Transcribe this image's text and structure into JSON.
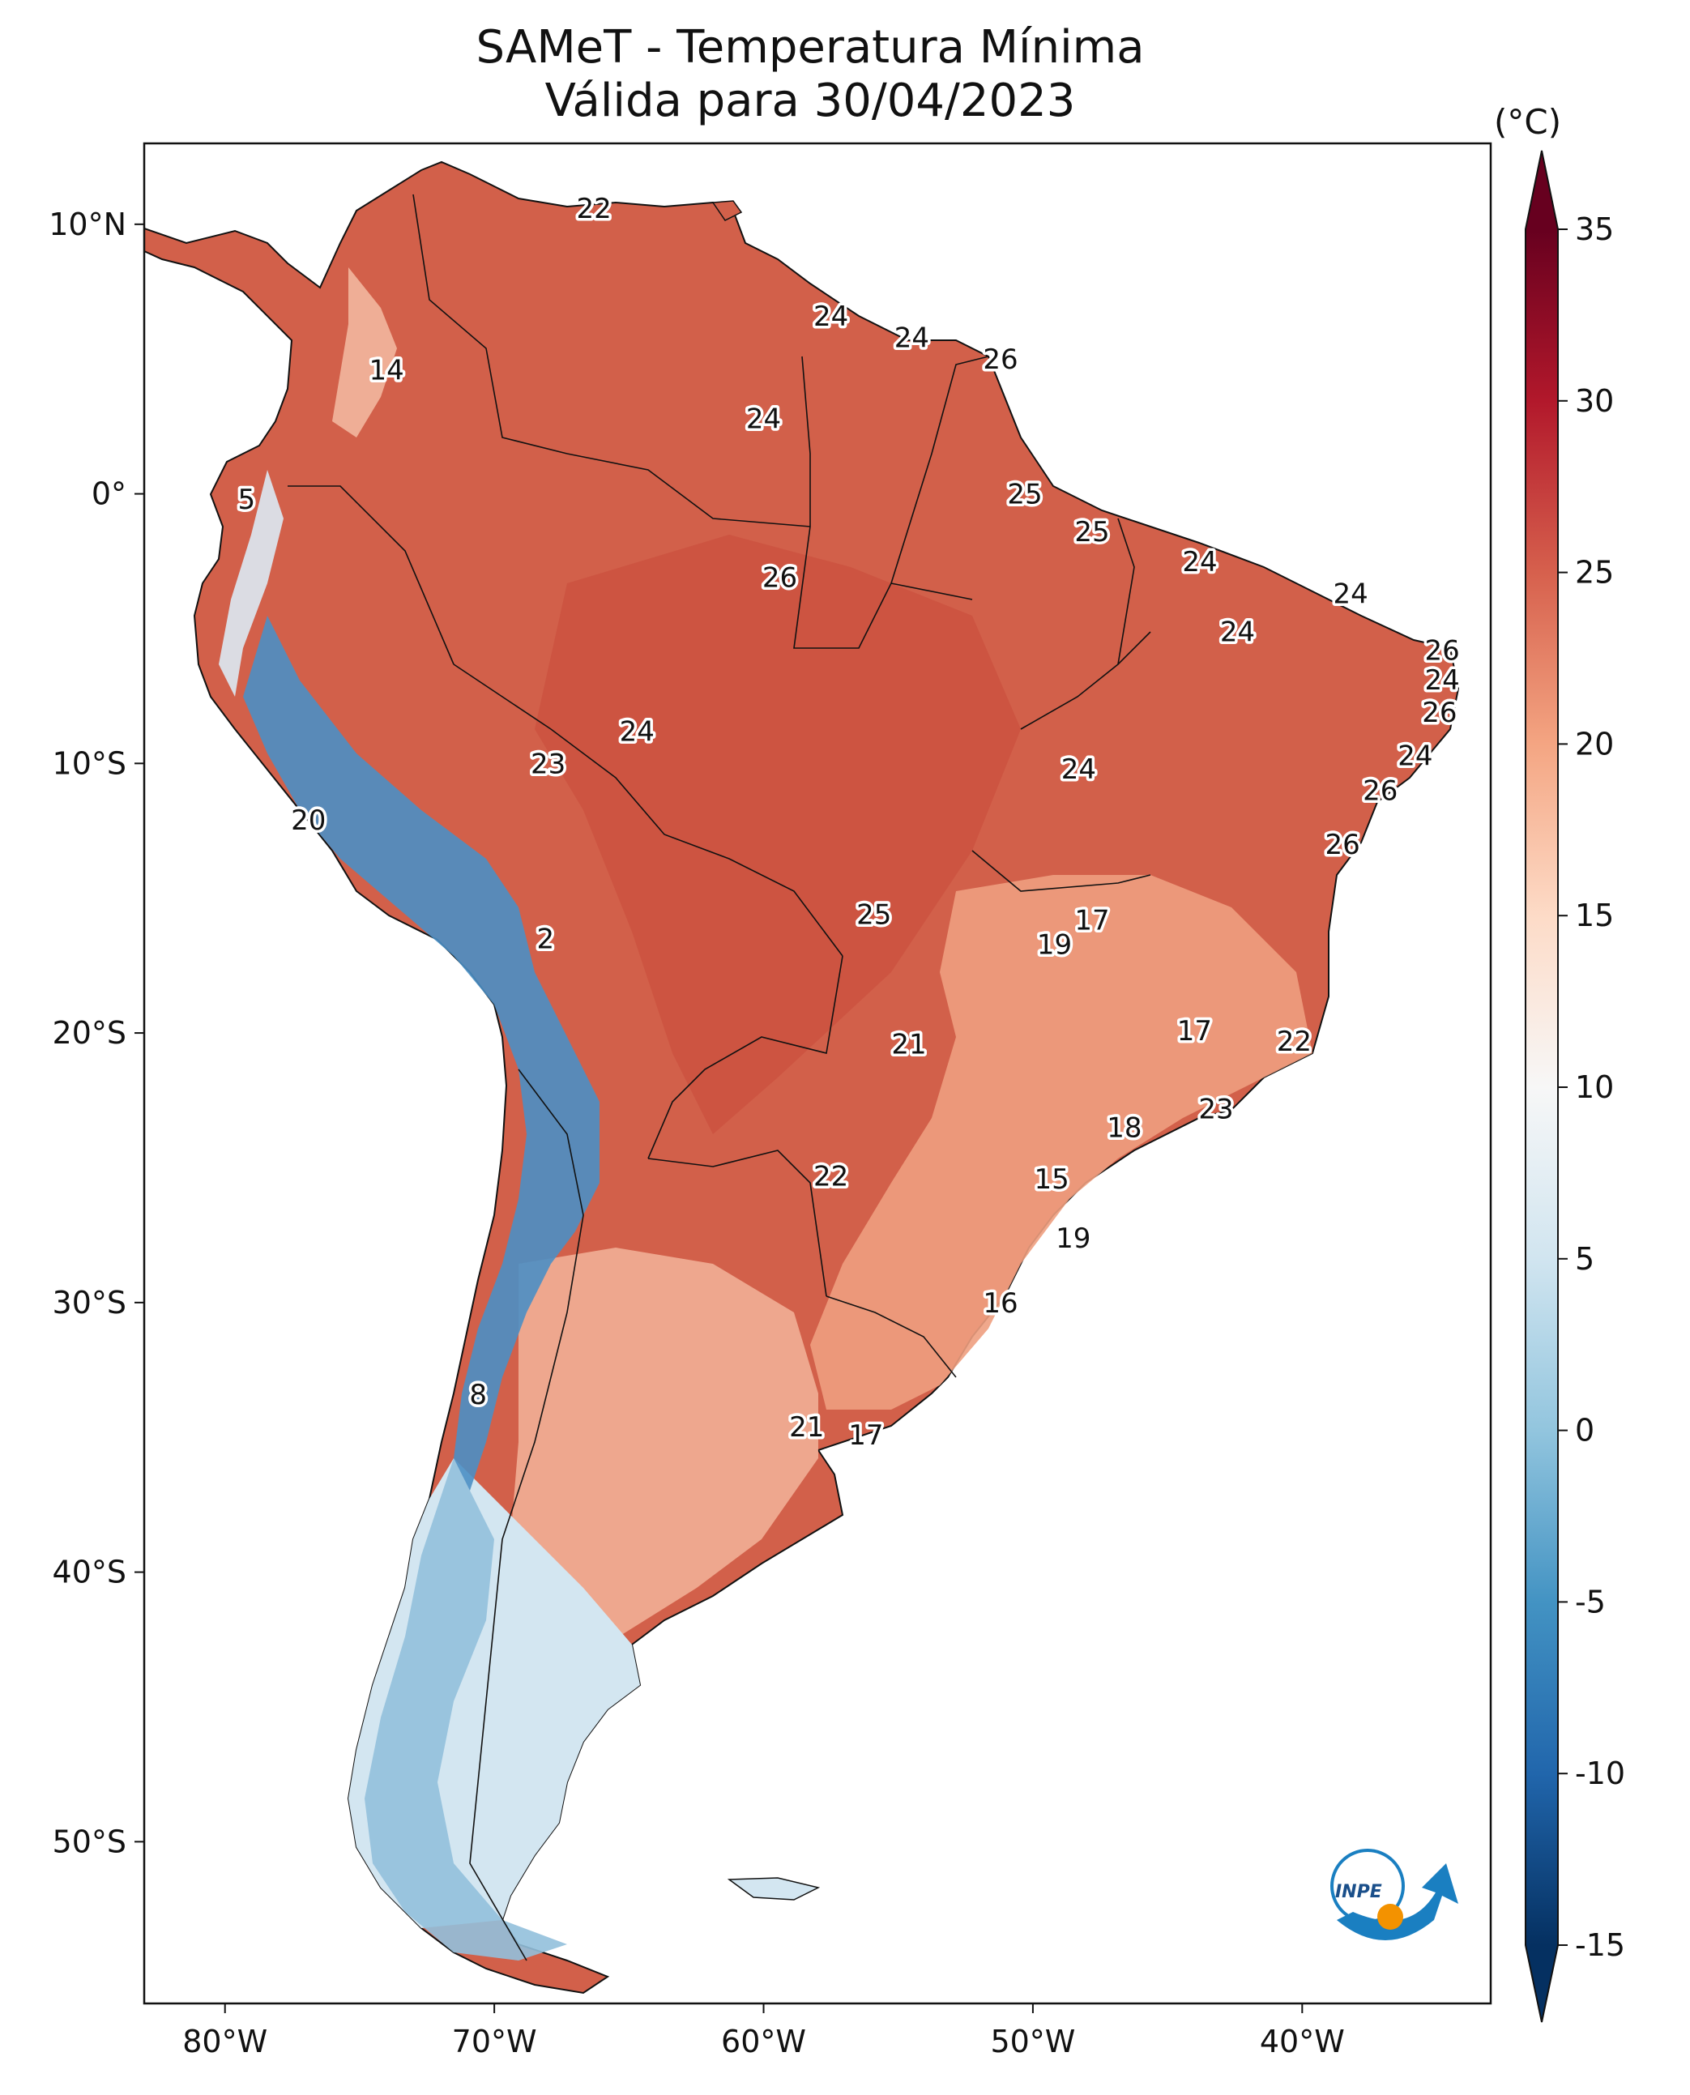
{
  "title": {
    "line1": "SAMeT - Temperatura Mínima",
    "line2": "Válida para 30/04/2023"
  },
  "map": {
    "lon_ticks": [
      "80°W",
      "70°W",
      "60°W",
      "50°W",
      "40°W"
    ],
    "lat_ticks": [
      "10°N",
      "0°",
      "10°S",
      "20°S",
      "30°S",
      "40°S",
      "50°S"
    ],
    "lon_values": [
      -80,
      -70,
      -60,
      -50,
      -40
    ],
    "lat_values": [
      10,
      0,
      -10,
      -20,
      -30,
      -40,
      -50
    ],
    "extent": {
      "lon_min": -83,
      "lon_max": -33,
      "lat_min": -56,
      "lat_max": 13
    },
    "point_labels": [
      {
        "text": "22",
        "lon": -66.3,
        "lat": 10.6
      },
      {
        "text": "14",
        "lon": -74.0,
        "lat": 4.6
      },
      {
        "text": "24",
        "lon": -57.5,
        "lat": 6.6
      },
      {
        "text": "24",
        "lon": -54.5,
        "lat": 5.8
      },
      {
        "text": "26",
        "lon": -51.2,
        "lat": 5.0
      },
      {
        "text": "24",
        "lon": -60.0,
        "lat": 2.8
      },
      {
        "text": "5",
        "lon": -79.2,
        "lat": -0.2
      },
      {
        "text": "25",
        "lon": -50.3,
        "lat": 0.0
      },
      {
        "text": "26",
        "lon": -59.4,
        "lat": -3.1
      },
      {
        "text": "25",
        "lon": -47.8,
        "lat": -1.4
      },
      {
        "text": "24",
        "lon": -43.8,
        "lat": -2.5
      },
      {
        "text": "24",
        "lon": -38.2,
        "lat": -3.7
      },
      {
        "text": "24",
        "lon": -42.4,
        "lat": -5.1
      },
      {
        "text": "26",
        "lon": -34.8,
        "lat": -5.8
      },
      {
        "text": "24",
        "lon": -34.8,
        "lat": -6.9
      },
      {
        "text": "26",
        "lon": -34.9,
        "lat": -8.1
      },
      {
        "text": "24",
        "lon": -64.7,
        "lat": -8.8
      },
      {
        "text": "23",
        "lon": -68.0,
        "lat": -10.0
      },
      {
        "text": "24",
        "lon": -48.3,
        "lat": -10.2
      },
      {
        "text": "24",
        "lon": -35.8,
        "lat": -9.7
      },
      {
        "text": "26",
        "lon": -37.1,
        "lat": -11.0
      },
      {
        "text": "20",
        "lon": -76.9,
        "lat": -12.1
      },
      {
        "text": "26",
        "lon": -38.5,
        "lat": -13.0
      },
      {
        "text": "25",
        "lon": -55.9,
        "lat": -15.6
      },
      {
        "text": "17",
        "lon": -47.8,
        "lat": -15.8
      },
      {
        "text": "19",
        "lon": -49.2,
        "lat": -16.7
      },
      {
        "text": "2",
        "lon": -68.1,
        "lat": -16.5
      },
      {
        "text": "17",
        "lon": -44.0,
        "lat": -19.9
      },
      {
        "text": "22",
        "lon": -40.3,
        "lat": -20.3
      },
      {
        "text": "21",
        "lon": -54.6,
        "lat": -20.4
      },
      {
        "text": "23",
        "lon": -43.2,
        "lat": -22.8
      },
      {
        "text": "18",
        "lon": -46.6,
        "lat": -23.5
      },
      {
        "text": "22",
        "lon": -57.5,
        "lat": -25.3
      },
      {
        "text": "15",
        "lon": -49.3,
        "lat": -25.4
      },
      {
        "text": "19",
        "lon": -48.5,
        "lat": -27.6
      },
      {
        "text": "16",
        "lon": -51.2,
        "lat": -30.0
      },
      {
        "text": "8",
        "lon": -70.6,
        "lat": -33.4
      },
      {
        "text": "21",
        "lon": -58.4,
        "lat": -34.6
      },
      {
        "text": "17",
        "lon": -56.2,
        "lat": -34.9
      }
    ]
  },
  "colorbar": {
    "unit": "(°C)",
    "ticks": [
      "35",
      "30",
      "25",
      "20",
      "15",
      "10",
      "5",
      "0",
      "-5",
      "-10",
      "-15"
    ],
    "tick_values": [
      35,
      30,
      25,
      20,
      15,
      10,
      5,
      0,
      -5,
      -10,
      -15
    ],
    "min": -15,
    "max": 35,
    "colors": [
      "#053061",
      "#2166ac",
      "#4393c3",
      "#92c5de",
      "#d1e5f0",
      "#f7f7f7",
      "#fddbc7",
      "#f4a582",
      "#d6604d",
      "#b2182b",
      "#67001f"
    ]
  },
  "logo": {
    "text": "INPE",
    "accent": "#1a7fc1",
    "dot": "#f39200"
  }
}
